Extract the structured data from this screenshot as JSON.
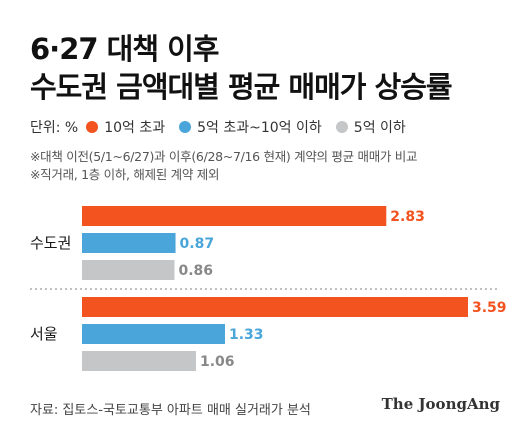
{
  "title_lines": [
    "6·27 대책 이후",
    "수도권 금액대별 평균 매매가 상승률"
  ],
  "legend": {
    "unit_label": "단위: %",
    "items": [
      {
        "label": "10억 초과",
        "color": "#f2531f"
      },
      {
        "label": "5억 초과~10억 이하",
        "color": "#4aa6da"
      },
      {
        "label": "5억 이하",
        "color": "#c4c6c8"
      }
    ]
  },
  "notes": [
    "※대책 이전(5/1~6/27)과 이후(6/28~7/16 현재) 계약의 평균 매매가 비교",
    "※직거래, 1층 이하, 해제된 계약 제외"
  ],
  "chart_data": {
    "type": "bar",
    "orientation": "horizontal",
    "categories": [
      "수도권",
      "서울"
    ],
    "series": [
      {
        "name": "10억 초과",
        "values": [
          2.83,
          3.59
        ],
        "color": "#f2531f"
      },
      {
        "name": "5억 초과~10억 이하",
        "values": [
          0.87,
          1.33
        ],
        "color": "#4aa6da"
      },
      {
        "name": "5억 이하",
        "values": [
          0.86,
          1.06
        ],
        "color": "#c4c6c8"
      }
    ],
    "value_labels": [
      [
        "2.83",
        "0.87",
        "0.86"
      ],
      [
        "3.59",
        "1.33",
        "1.06"
      ]
    ],
    "xlim": [
      0,
      3.59
    ],
    "grid": false,
    "divider_between_groups": true
  },
  "source": "자료: 집토스-국토교통부 아파트 매매 실거래가 분석",
  "brand": "The JoongAng"
}
